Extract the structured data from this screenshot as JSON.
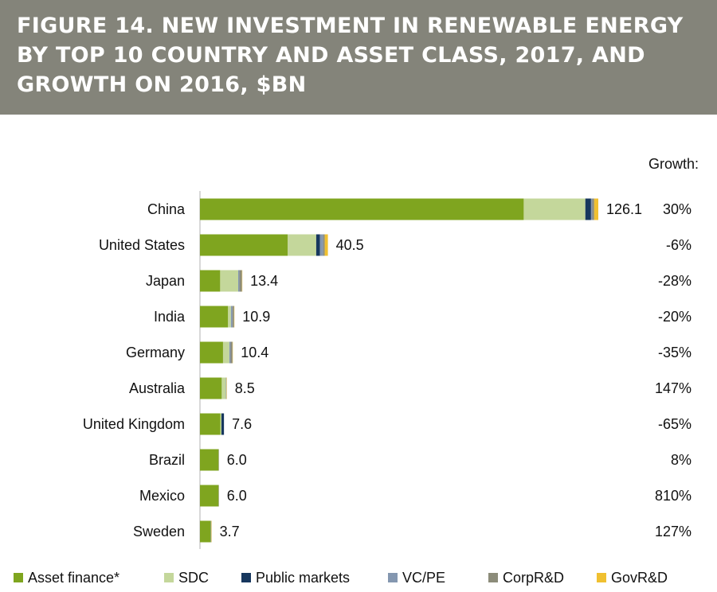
{
  "figure_title": "FIGURE 14. NEW INVESTMENT IN RENEWABLE ENERGY BY TOP 10 COUNTRY AND ASSET CLASS, 2017, AND GROWTH ON 2016, $BN",
  "growth_header": "Growth:",
  "colors": {
    "banner": "#84847a",
    "asset_finance": "#7fa51f",
    "sdc": "#c4d79b",
    "public_markets": "#17375e",
    "vc_pe": "#8497b0",
    "corp_rd": "#8c8c7a",
    "gov_rd": "#f0c030"
  },
  "chart_data": {
    "type": "bar",
    "orientation": "horizontal",
    "stacked": true,
    "categories": [
      "China",
      "United States",
      "Japan",
      "India",
      "Germany",
      "Australia",
      "United Kingdom",
      "Brazil",
      "Mexico",
      "Sweden"
    ],
    "totals": [
      126.1,
      40.5,
      13.4,
      10.9,
      10.4,
      8.5,
      7.6,
      6.0,
      6.0,
      3.7
    ],
    "total_labels": [
      "126.1",
      "40.5",
      "13.4",
      "10.9",
      "10.4",
      "8.5",
      "7.6",
      "6.0",
      "6.0",
      "3.7"
    ],
    "growth": [
      "30%",
      "-6%",
      "-28%",
      "-20%",
      "-35%",
      "147%",
      "-65%",
      "8%",
      "810%",
      "127%"
    ],
    "series": [
      {
        "name": "Asset finance*",
        "color": "#7fa51f",
        "values": [
          102.5,
          27.8,
          6.4,
          8.9,
          7.3,
          6.9,
          6.5,
          5.9,
          5.9,
          3.4
        ]
      },
      {
        "name": "SDC",
        "color": "#c4d79b",
        "values": [
          19.5,
          9.0,
          5.7,
          0.9,
          2.0,
          1.3,
          0.3,
          0.0,
          0.0,
          0.0
        ]
      },
      {
        "name": "Public markets",
        "color": "#17375e",
        "values": [
          1.8,
          1.2,
          0.0,
          0.0,
          0.0,
          0.0,
          0.8,
          0.0,
          0.0,
          0.0
        ]
      },
      {
        "name": "VC/PE",
        "color": "#8497b0",
        "values": [
          0.4,
          1.0,
          0.4,
          0.5,
          0.4,
          0.1,
          0.0,
          0.0,
          0.0,
          0.1
        ]
      },
      {
        "name": "CorpR&D",
        "color": "#8c8c7a",
        "values": [
          0.6,
          0.5,
          0.8,
          0.5,
          0.6,
          0.1,
          0.0,
          0.1,
          0.1,
          0.1
        ]
      },
      {
        "name": "GovR&D",
        "color": "#f0c030",
        "values": [
          1.3,
          1.0,
          0.1,
          0.1,
          0.1,
          0.1,
          0.0,
          0.0,
          0.0,
          0.1
        ]
      }
    ],
    "xlim": [
      0,
      130
    ],
    "legend_position": "bottom",
    "grid": false
  }
}
